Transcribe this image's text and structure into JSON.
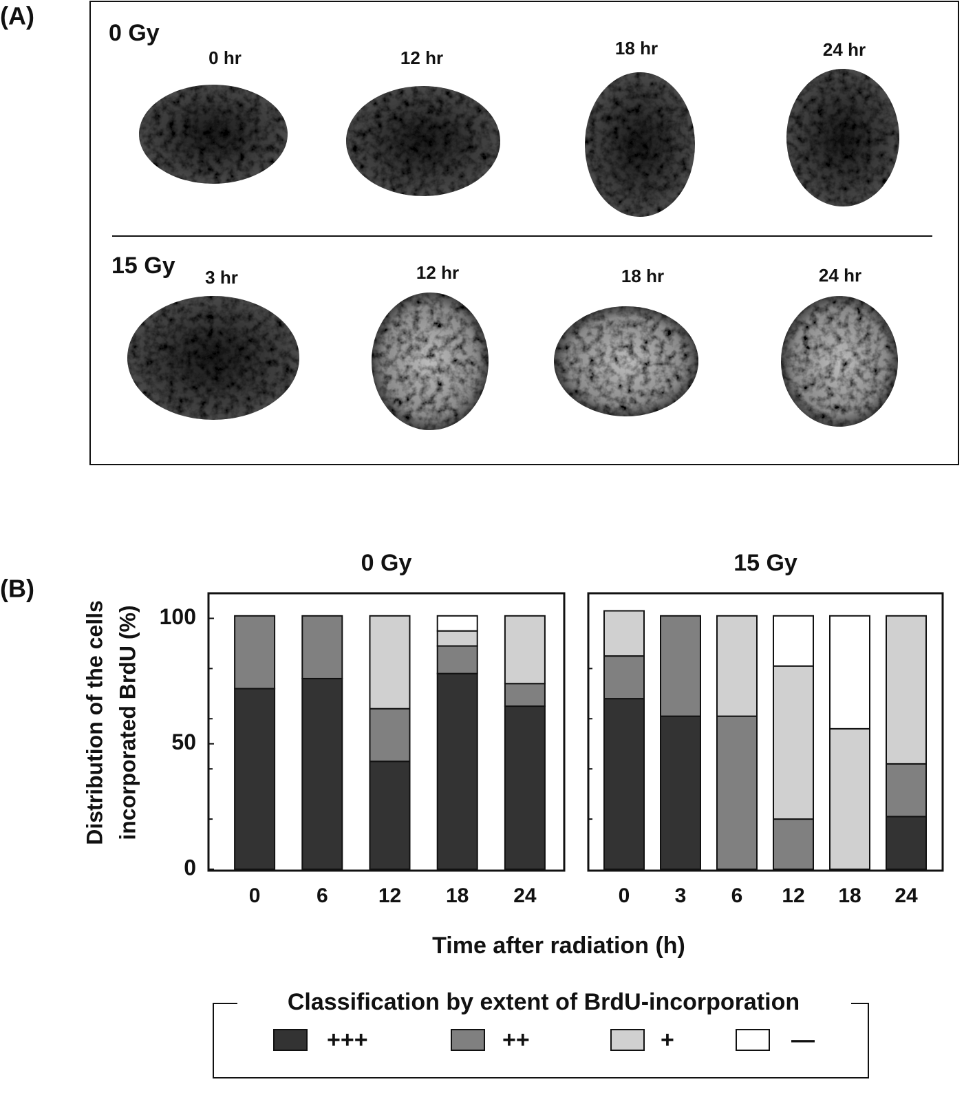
{
  "panel_a": {
    "label": "(A)",
    "rows": [
      {
        "dose": "0 Gy",
        "times": [
          "0 hr",
          "12 hr",
          "18 hr",
          "24 hr"
        ]
      },
      {
        "dose": "15 Gy",
        "times": [
          "3 hr",
          "12 hr",
          "18 hr",
          "24 hr"
        ]
      }
    ]
  },
  "panel_b": {
    "label": "(B)",
    "ylabel": [
      "Distribution of  the cells",
      "incorporated BrdU (%)"
    ],
    "xlabel": "Time after radiation (h)",
    "legend_title": "Classification by extent of BrdU-incorporation"
  },
  "chart_data": [
    {
      "type": "stacked_bar",
      "title": "0 Gy",
      "categories": [
        "0",
        "6",
        "12",
        "18",
        "24"
      ],
      "series": [
        {
          "name": "+++",
          "color": "#333333",
          "values": [
            72,
            76,
            43,
            78,
            65
          ]
        },
        {
          "name": "++",
          "color": "#808080",
          "values": [
            29,
            25,
            21,
            11,
            9
          ]
        },
        {
          "name": "+",
          "color": "#d0d0d0",
          "values": [
            0,
            0,
            37,
            6,
            27
          ]
        },
        {
          "name": "—",
          "color": "#ffffff",
          "values": [
            0,
            0,
            0,
            6,
            0
          ]
        }
      ],
      "ylim": [
        0,
        110
      ],
      "yticks": [
        0,
        50,
        100
      ],
      "minor_yticks": [
        20,
        40,
        60,
        80
      ]
    },
    {
      "type": "stacked_bar",
      "title": "15 Gy",
      "categories": [
        "0",
        "3",
        "6",
        "12",
        "18",
        "24"
      ],
      "series": [
        {
          "color": "#333333",
          "values": [
            68,
            61,
            0,
            0,
            0,
            21
          ]
        },
        {
          "color": "#808080",
          "values": [
            17,
            40,
            61,
            20,
            0,
            21
          ]
        },
        {
          "color": "#d0d0d0",
          "values": [
            18,
            0,
            40,
            61,
            56,
            59
          ]
        },
        {
          "color": "#ffffff",
          "values": [
            0,
            0,
            0,
            20,
            45,
            0
          ]
        }
      ],
      "ylim": [
        0,
        110
      ],
      "minor_yticks": [
        20,
        40,
        60,
        80
      ]
    }
  ]
}
